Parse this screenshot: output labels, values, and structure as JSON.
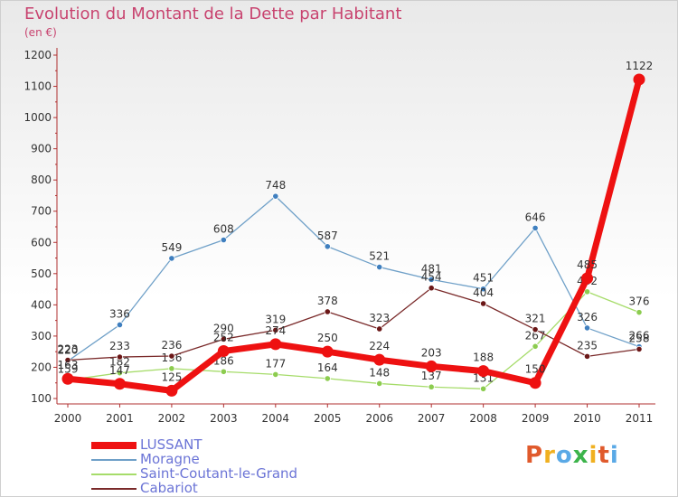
{
  "title": "Evolution du Montant de la Dette par Habitant",
  "unit": "(en €)",
  "logo": {
    "text": "Proxiti",
    "colors": [
      "#e05a2c",
      "#f0b020",
      "#5aa9e6",
      "#3cb44b",
      "#f0b020",
      "#e05a2c",
      "#5aa9e6"
    ]
  },
  "chart_data": {
    "type": "line",
    "categories": [
      "2000",
      "2001",
      "2002",
      "2003",
      "2004",
      "2005",
      "2006",
      "2007",
      "2008",
      "2009",
      "2010",
      "2011"
    ],
    "ylim": [
      100,
      1200
    ],
    "yticks": [
      100,
      200,
      300,
      400,
      500,
      600,
      700,
      800,
      900,
      1000,
      1100,
      1200
    ],
    "grid": false,
    "legend_position": "bottom-left",
    "series": [
      {
        "name": "Moragne",
        "color": "#6fa0c8",
        "marker": "#3f7fbf",
        "width": 1.3,
        "values": [
          220,
          336,
          549,
          608,
          748,
          587,
          521,
          481,
          451,
          646,
          326,
          266
        ]
      },
      {
        "name": "Saint-Coutant-le-Grand",
        "color": "#a6dc6a",
        "marker": "#8ccc4f",
        "width": 1.3,
        "values": [
          159,
          182,
          196,
          186,
          177,
          164,
          148,
          137,
          131,
          267,
          442,
          376
        ]
      },
      {
        "name": "Cabariot",
        "color": "#7a2a2a",
        "marker": "#6b1717",
        "width": 1.3,
        "values": [
          223,
          233,
          236,
          290,
          319,
          378,
          323,
          454,
          404,
          321,
          235,
          258
        ]
      },
      {
        "name": "LUSSANT",
        "color": "#ee1111",
        "marker": "#ee1111",
        "width": 7,
        "values": [
          163,
          147,
          125,
          252,
          274,
          250,
          224,
          203,
          188,
          150,
          485,
          1122
        ]
      }
    ],
    "legend_order": [
      "LUSSANT",
      "Moragne",
      "Saint-Coutant-le-Grand",
      "Cabariot"
    ]
  }
}
